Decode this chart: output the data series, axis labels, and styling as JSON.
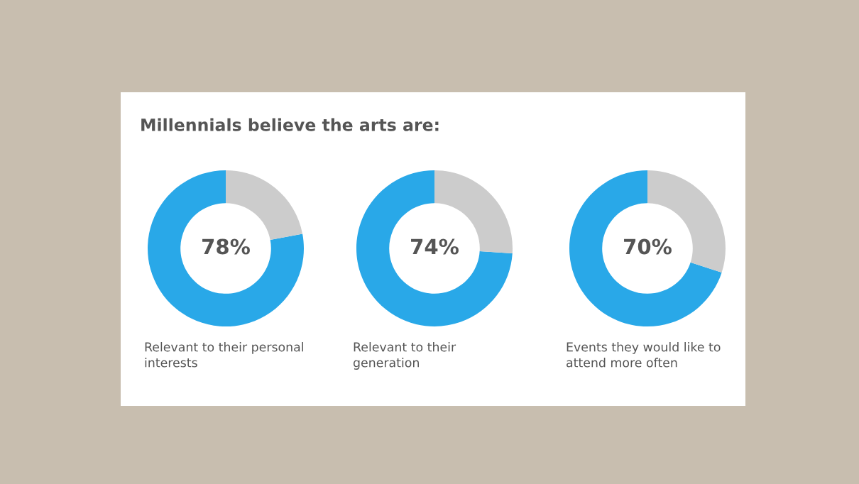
{
  "chart_data": [
    {
      "type": "donut",
      "title": "Millennials believe the arts are:",
      "xlabel": "Relevant to their personal interests",
      "categories": [
        null,
        null
      ],
      "values": [
        78,
        22
      ],
      "colors": [
        "#29a8e8",
        "#cccccc"
      ],
      "annotations": [
        "78%"
      ]
    },
    {
      "type": "donut",
      "xlabel": "Relevant to their generation",
      "categories": [
        null,
        null
      ],
      "values": [
        74,
        26
      ],
      "colors": [
        "#29a8e8",
        "#cccccc"
      ],
      "annotations": [
        "74%"
      ]
    },
    {
      "type": "donut",
      "xlabel": "Events they would like to attend more often",
      "categories": [
        null,
        null
      ],
      "values": [
        70,
        30
      ],
      "colors": [
        "#29a8e8",
        "#cccccc"
      ],
      "annotations": [
        "70%"
      ]
    }
  ]
}
